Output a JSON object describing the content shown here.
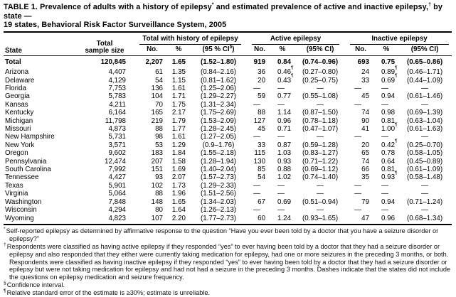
{
  "colors": {
    "text": "#000000",
    "rule": "#000000",
    "background": "#ffffff"
  },
  "title": {
    "seg1": "TABLE 1. Prevalence of adults with a history of epilepsy",
    "sup1": "*",
    "seg2": " and estimated prevalence of active and inactive epilepsy,",
    "sup2": "†",
    "seg3": " by state —",
    "line2": "19 states, Behavioral Risk Factor Surveillance System, 2005"
  },
  "table": {
    "col_state": "State",
    "col_sample_line1": "Total",
    "col_sample_line2": "sample size",
    "groups": [
      {
        "label": "Total with history of epilepsy",
        "no": "No.",
        "pct": "%",
        "ci_pre": "(95 % CI",
        "ci_sup": "§",
        "ci_post": ")"
      },
      {
        "label": "Active epilepsy",
        "no": "No.",
        "pct": "%",
        "ci_pre": "(95% CI",
        "ci_sup": "",
        "ci_post": ")"
      },
      {
        "label": "Inactive epilepsy",
        "no": "No.",
        "pct": "%",
        "ci_pre": "(95% CI",
        "ci_sup": "",
        "ci_post": ")"
      }
    ],
    "total_row": [
      "Total",
      "120,845",
      "2,207",
      "1.65",
      "(1.52–1.80)",
      "919",
      "0.84",
      "(0.74–0.96)",
      "693",
      "0.75",
      "(0.65–0.86)"
    ],
    "rows": [
      [
        "Arizona",
        "4,407",
        "61",
        "1.35",
        "(0.84–2.16)",
        "36",
        "0.46¶",
        "(0.27–0.80)",
        "24",
        "0.89¶",
        "(0.46–1.71)"
      ],
      [
        "Delaware",
        "4,129",
        "54",
        "1.15",
        "(0.81–1.62)",
        "20",
        "0.43¶",
        "(0.25–0.75)",
        "33",
        "0.69¶",
        "(0.44–1.09)"
      ],
      [
        "Florida",
        "7,753",
        "136",
        "1.61",
        "(1.25–2.06)",
        "—",
        "—",
        "—",
        "—",
        "—",
        "—"
      ],
      [
        "Georgia",
        "5,783",
        "104",
        "1.71",
        "(1.29–2.27)",
        "59",
        "0.77",
        "(0.55–1.08)",
        "45",
        "0.94",
        "(0.61–1.46)"
      ],
      [
        "Kansas",
        "4,211",
        "70",
        "1.75",
        "(1.31–2.34)",
        "—",
        "—",
        "—",
        "—",
        "—",
        "—"
      ],
      [
        "Kentucky",
        "6,164",
        "165",
        "2.17",
        "(1.75–2.69)",
        "88",
        "1.14",
        "(0.87–1.50)",
        "74",
        "0.98",
        "(0.69–1.39)"
      ],
      [
        "Michigan",
        "11,798",
        "219",
        "1.79",
        "(1.53–2.09)",
        "127",
        "0.96",
        "(0.78–1.18)",
        "90",
        "0.81",
        "(0.63–1.04)"
      ],
      [
        "Missouri",
        "4,873",
        "88",
        "1.77",
        "(1.28–2.45)",
        "45",
        "0.71",
        "(0.47–1.07)",
        "41",
        "1.00¶",
        "(0.61–1.63)"
      ],
      [
        "New Hampshire",
        "5,731",
        "98",
        "1.61",
        "(1.27–2.05)",
        "—",
        "—",
        "—",
        "—",
        "—",
        "—"
      ],
      [
        "New York",
        "3,571",
        "53",
        "1.29",
        "(0.9–1.76)",
        "33",
        "0.87",
        "(0.59–1.28)",
        "20",
        "0.42¶",
        "(0.25–0.70)"
      ],
      [
        "Oregon",
        "9,602",
        "183",
        "1.84",
        "(1.55–2.18)",
        "115",
        "1.03",
        "(0.83–1.27)",
        "65",
        "0.78",
        "(0.58–1.05)"
      ],
      [
        "Pennsylvania",
        "12,474",
        "207",
        "1.58",
        "(1.28–1.94)",
        "130",
        "0.93",
        "(0.71–1.22)",
        "74",
        "0.64",
        "(0.45–0.89)"
      ],
      [
        "South Carolina",
        "7,992",
        "151",
        "1.69",
        "(1.40–2.04)",
        "85",
        "0.88",
        "(0.69–1.12)",
        "66",
        "0.81",
        "(0.61–1.09)"
      ],
      [
        "Tennessee",
        "4,427",
        "93",
        "2.07",
        "(1.57–2.73)",
        "54",
        "1.02",
        "(0.74–1.40)",
        "35",
        "0.93¶",
        "(0.58–1.48)"
      ],
      [
        "Texas",
        "5,901",
        "102",
        "1.73",
        "(1.29–2.33)",
        "—",
        "—",
        "—",
        "—",
        "—",
        "—"
      ],
      [
        "Virginia",
        "5,064",
        "88",
        "1.96",
        "(1.51–2.56)",
        "—",
        "—",
        "—",
        "—",
        "—",
        "—"
      ],
      [
        "Washington",
        "7,848",
        "148",
        "1.65",
        "(1.34–2.03)",
        "67",
        "0.69",
        "(0.51–0.94)",
        "79",
        "0.94",
        "(0.71–1.24)"
      ],
      [
        "Wisconsin",
        "4,294",
        "80",
        "1.64",
        "(1.26–2.13)",
        "—",
        "—",
        "—",
        "—",
        "—",
        "—"
      ],
      [
        "Wyoming",
        "4,823",
        "107",
        "2.20",
        "(1.77–2.73)",
        "60",
        "1.24",
        "(0.93–1.65)",
        "47",
        "0.96",
        "(0.68–1.34)"
      ]
    ]
  },
  "footnotes": [
    {
      "marker": "*",
      "text": "Self-reported epilepsy as determined by affirmative response to the question “Have you ever been told by a doctor that you have a seizure disorder or epilepsy?”"
    },
    {
      "marker": "†",
      "text": "Respondents were classified as having active epilepsy if they responded “yes” to ever having been told by a doctor that they had a seizure disorder or epilepsy and also responded that they either were currently taking medication for epilepsy, had one or more seizures in the preceding 3 months, or both. Respondents were classified as having inactive epilepsy if they responded “yes” to ever having been told by a doctor that they had a seizure disorder or epilepsy but were not taking medication for epilepsy and had not had a seizure in the preceding 3 months. Dashes indicate that the states did not include the questions on epilepsy medication and seizure frequency."
    },
    {
      "marker": "§",
      "text": "Confidence interval."
    },
    {
      "marker": "¶",
      "text": "Relative standard error of the estimate is ≥30%; estimate is unreliable."
    }
  ]
}
